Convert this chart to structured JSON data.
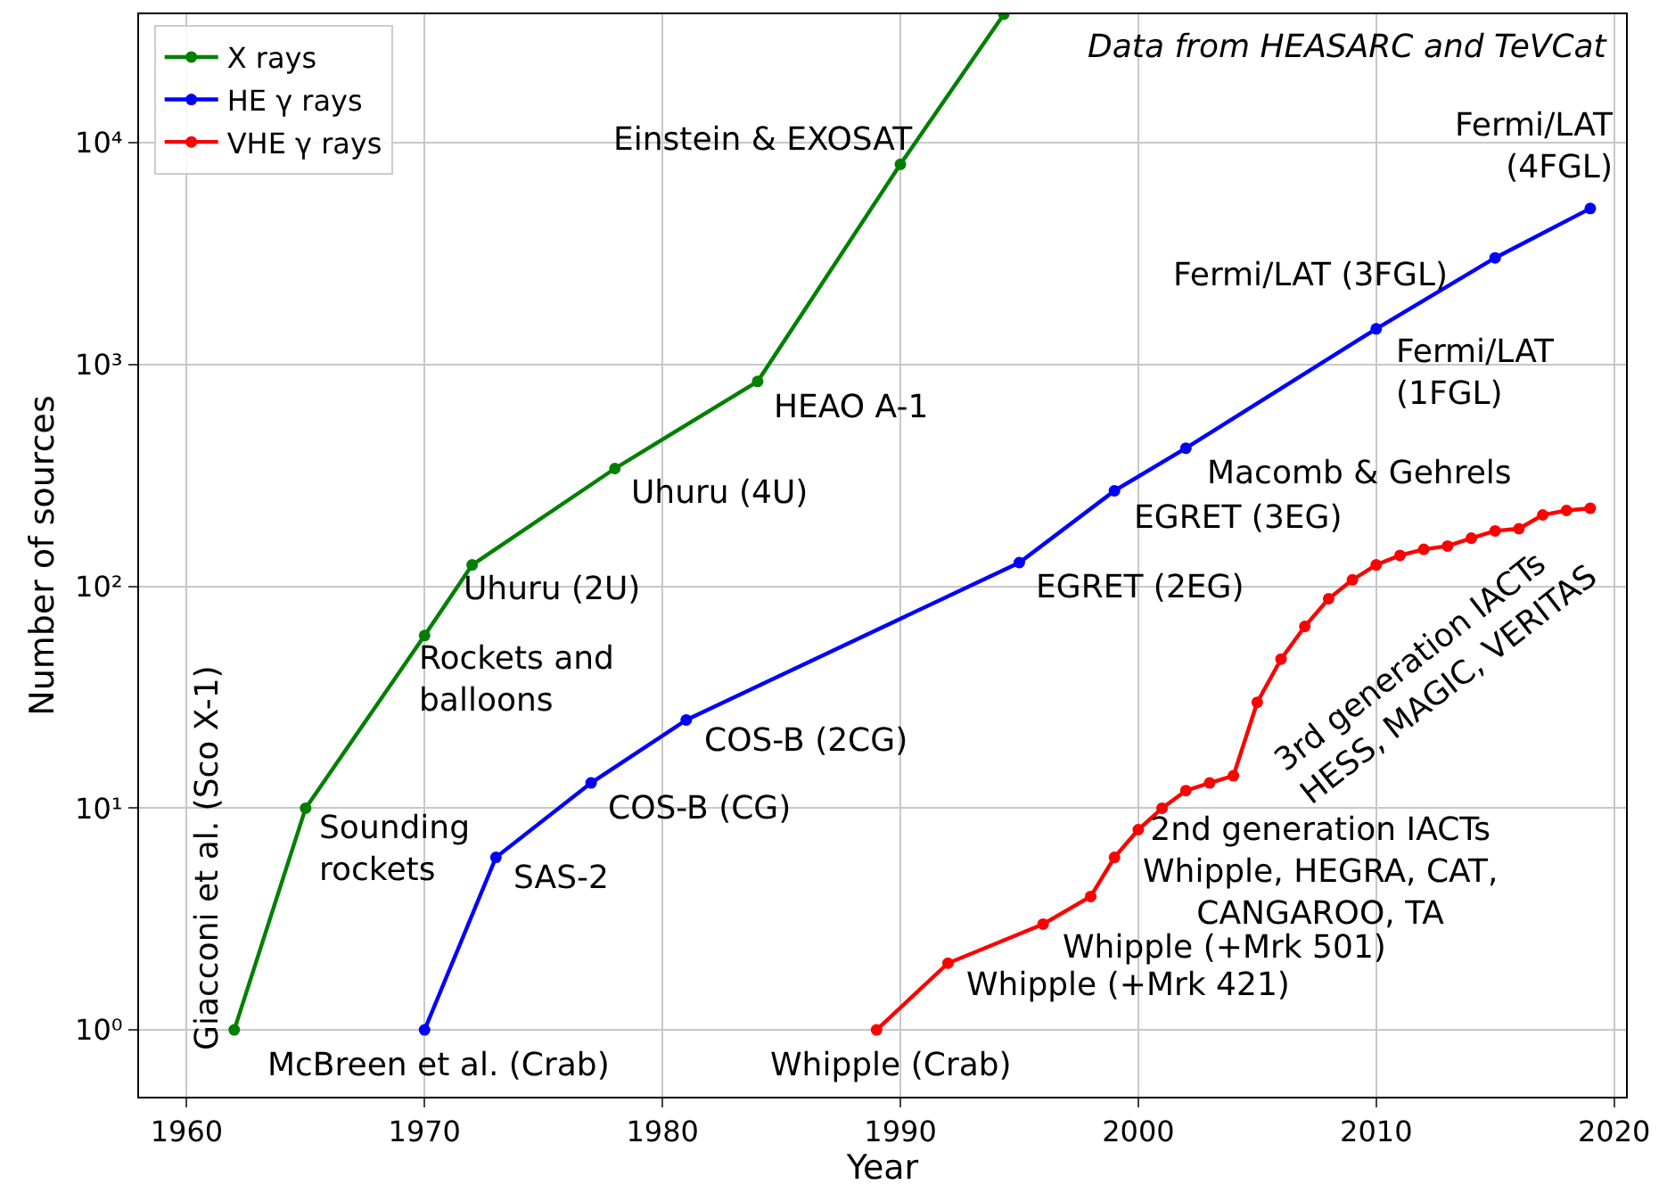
{
  "chart_data": {
    "type": "line",
    "xlabel": "Year",
    "ylabel": "Number of sources",
    "log": "y",
    "grid": true,
    "legend": "top left",
    "marker": "circle",
    "line_style": "solid",
    "xlim": [
      1958,
      2020.5
    ],
    "xticks": [
      1960,
      1970,
      1980,
      1990,
      2000,
      2010,
      2020
    ],
    "ylim": [
      0.5,
      38000
    ],
    "yticks": [
      {
        "value": 1,
        "label": "10⁰"
      },
      {
        "value": 10,
        "label": "10¹"
      },
      {
        "value": 100,
        "label": "10²"
      },
      {
        "value": 1000,
        "label": "10³"
      },
      {
        "value": 10000,
        "label": "10⁴"
      }
    ],
    "series": [
      {
        "name": "X rays",
        "color": "#008000",
        "x": [
          1962,
          1965,
          1970,
          1972,
          1978,
          1984,
          1990,
          1994.35
        ],
        "values": [
          1,
          10,
          60,
          125,
          340,
          840,
          8000,
          38000
        ]
      },
      {
        "name": "HE γ rays",
        "color": "#0000ff",
        "x": [
          1970,
          1973,
          1977,
          1981,
          1995,
          1999,
          2002,
          2010,
          2015,
          2019
        ],
        "values": [
          1,
          6,
          13,
          25,
          128,
          270,
          420,
          1450,
          3030,
          5060
        ]
      },
      {
        "name": "VHE γ rays",
        "color": "#ff0000",
        "x": [
          1989,
          1992,
          1996,
          1998,
          1999,
          2000,
          2001,
          2002,
          2003,
          2004,
          2005,
          2006,
          2007,
          2008,
          2009,
          2010,
          2011,
          2012,
          2013,
          2014,
          2015,
          2016,
          2017,
          2018,
          2019
        ],
        "values": [
          1,
          2,
          3,
          4,
          6,
          8,
          10,
          12,
          13,
          14,
          30,
          47,
          66,
          88,
          107,
          125,
          138,
          147,
          152,
          165,
          178,
          182,
          210,
          220,
          225
        ]
      }
    ],
    "annotations": [
      "Data from HEASARC and TeVCat",
      {
        "text": "Giacconi et al. (Sco X-1)",
        "x": 1962,
        "y": 1
      },
      {
        "text": "Sounding\nrockets",
        "x": 1965,
        "y": 10
      },
      {
        "text": "Rockets and\nballoons",
        "x": 1970,
        "y": 60
      },
      {
        "text": "Uhuru (2U)",
        "x": 1972,
        "y": 125
      },
      {
        "text": "Uhuru (4U)",
        "x": 1978,
        "y": 340
      },
      {
        "text": "HEAO A-1",
        "x": 1984,
        "y": 840
      },
      {
        "text": "Einstein & EXOSAT",
        "x": 1990,
        "y": 8000
      },
      {
        "text": "McBreen et al. (Crab)",
        "x": 1970,
        "y": 1
      },
      {
        "text": "SAS-2",
        "x": 1973,
        "y": 6
      },
      {
        "text": "COS-B (CG)",
        "x": 1977,
        "y": 13
      },
      {
        "text": "COS-B (2CG)",
        "x": 1981,
        "y": 25
      },
      {
        "text": "EGRET (2EG)",
        "x": 1995,
        "y": 128
      },
      {
        "text": "EGRET (3EG)",
        "x": 1999,
        "y": 270
      },
      {
        "text": "Macomb & Gehrels",
        "x": 2002,
        "y": 420
      },
      {
        "text": "Fermi/LAT\n(1FGL)",
        "x": 2010,
        "y": 1450
      },
      {
        "text": "Fermi/LAT (3FGL)",
        "x": 2015,
        "y": 3030
      },
      {
        "text": "Fermi/LAT\n(4FGL)",
        "x": 2019,
        "y": 5060
      },
      {
        "text": "Whipple (Crab)",
        "x": 1989,
        "y": 1
      },
      {
        "text": "Whipple (+Mrk 421)",
        "x": 1992,
        "y": 2
      },
      {
        "text": "Whipple (+Mrk 501)",
        "x": 1996,
        "y": 3
      },
      {
        "text": "2nd generation IACTs\nWhipple, HEGRA, CAT,\nCANGAROO, TA",
        "x": 1999,
        "y": 6
      },
      {
        "text": "3rd generation IACTs\nHESS, MAGIC, VERITAS",
        "x": 2005,
        "y": 30
      }
    ]
  }
}
